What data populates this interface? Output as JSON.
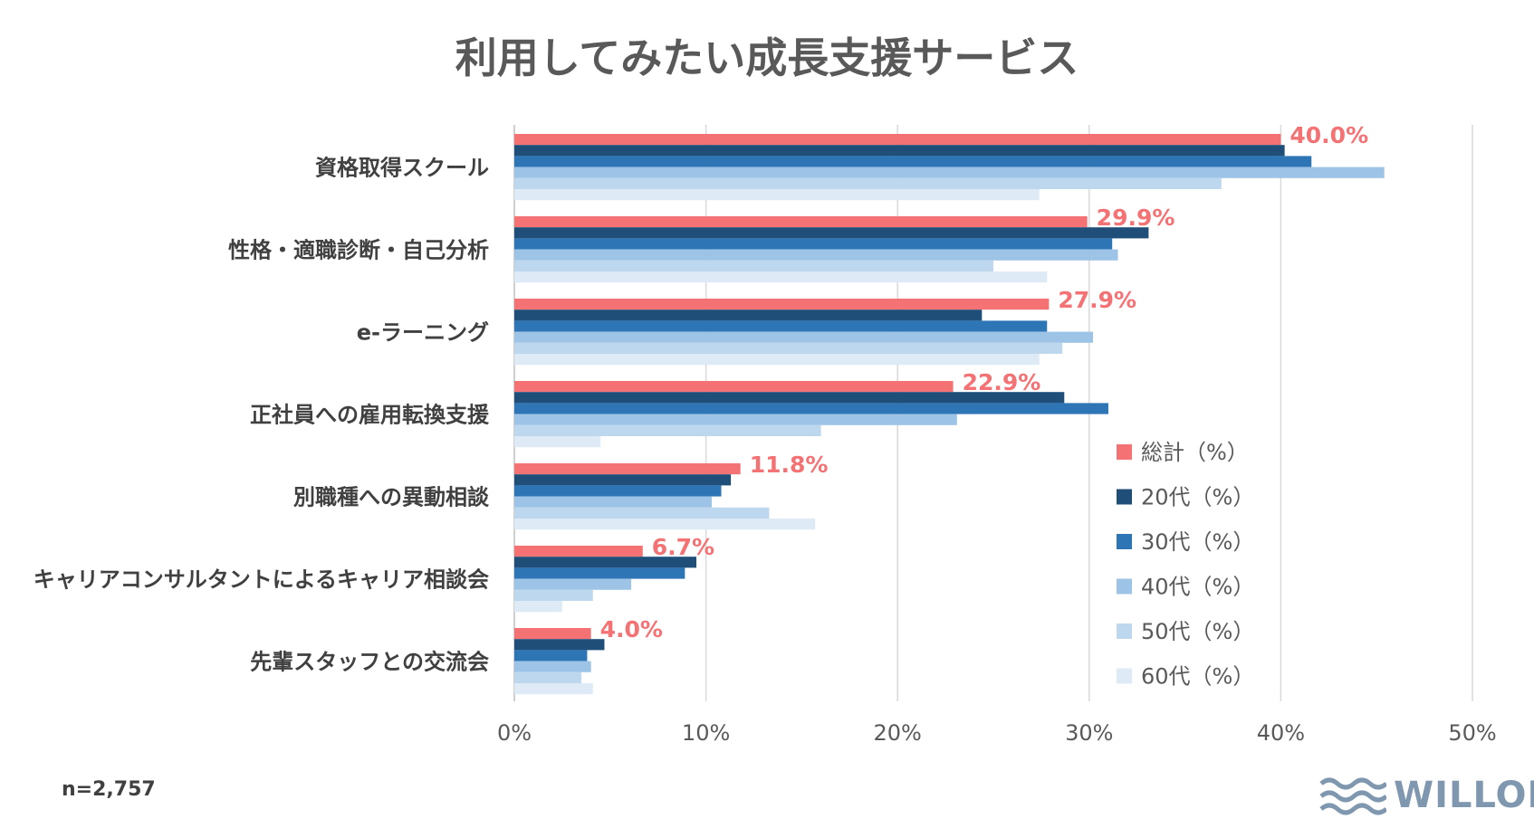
{
  "chart_data": {
    "type": "bar",
    "orientation": "horizontal",
    "title": "利用してみたい成長支援サービス",
    "categories": [
      "資格取得スクール",
      "性格・適職診断・自己分析",
      "e-ラーニング",
      "正社員への雇用転換支援",
      "別職種への異動相談",
      "キャリアコンサルタントによるキャリア相談会",
      "先輩スタッフとの交流会"
    ],
    "series": [
      {
        "name": "総計（%）",
        "color": "#f47174",
        "values": [
          40.0,
          29.9,
          27.9,
          22.9,
          11.8,
          6.7,
          4.0
        ]
      },
      {
        "name": "20代（%）",
        "color": "#1f4e79",
        "values": [
          40.2,
          33.1,
          24.4,
          28.7,
          11.3,
          9.5,
          4.7
        ]
      },
      {
        "name": "30代（%）",
        "color": "#2e75b6",
        "values": [
          41.6,
          31.2,
          27.8,
          31.0,
          10.8,
          8.9,
          3.8
        ]
      },
      {
        "name": "40代（%）",
        "color": "#9dc3e6",
        "values": [
          45.4,
          31.5,
          30.2,
          23.1,
          10.3,
          6.1,
          4.0
        ]
      },
      {
        "name": "50代（%）",
        "color": "#bdd7ee",
        "values": [
          36.9,
          25.0,
          28.6,
          16.0,
          13.3,
          4.1,
          3.5
        ]
      },
      {
        "name": "60代（%）",
        "color": "#deebf7",
        "values": [
          27.4,
          27.8,
          27.4,
          4.5,
          15.7,
          2.5,
          4.1
        ]
      }
    ],
    "data_labels": [
      "40.0%",
      "29.9%",
      "27.9%",
      "22.9%",
      "11.8%",
      "6.7%",
      "4.0%"
    ],
    "data_label_series": "総計（%）",
    "data_label_color": "#f47174",
    "x_ticks": [
      0,
      10,
      20,
      30,
      40,
      50
    ],
    "x_tick_labels": [
      "0%",
      "10%",
      "20%",
      "30%",
      "40%",
      "50%"
    ],
    "xlim": [
      0,
      50
    ],
    "grid": true,
    "legend_position": "right"
  },
  "footer": {
    "n_label": "n=2,757"
  },
  "logo": {
    "text": "WILLOF",
    "color": "#7f98b0"
  }
}
